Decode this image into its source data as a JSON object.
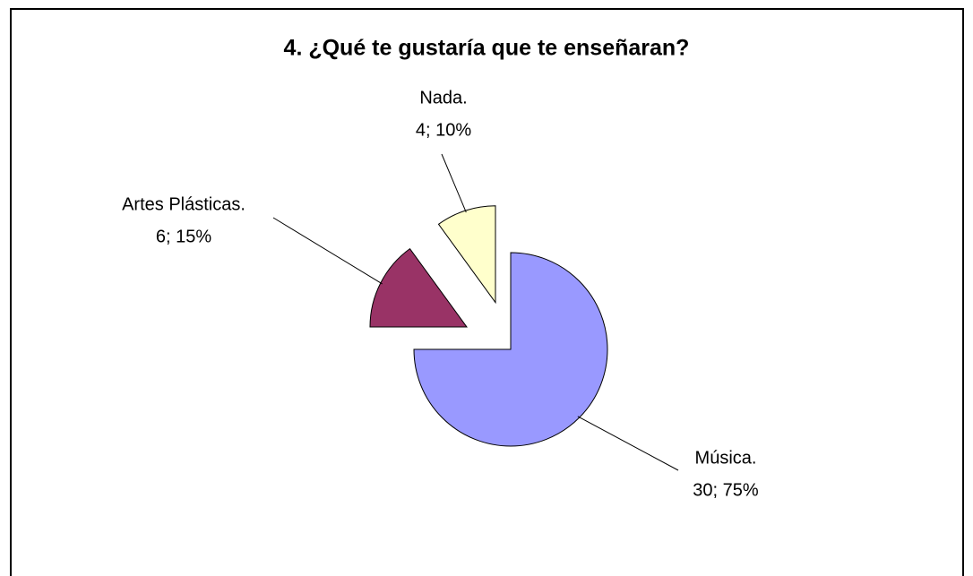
{
  "chart_data": {
    "type": "pie",
    "title": "4. ¿Qué te gustaría que te enseñaran?",
    "categories": [
      "Música.",
      "Artes Plásticas.",
      "Nada."
    ],
    "values": [
      30,
      6,
      4
    ],
    "value_labels": [
      "30; 75%",
      "6; 15%",
      "4; 10%"
    ],
    "colors": [
      "#9999ff",
      "#993366",
      "#ffffcc"
    ],
    "exploded": [
      false,
      true,
      true
    ]
  }
}
